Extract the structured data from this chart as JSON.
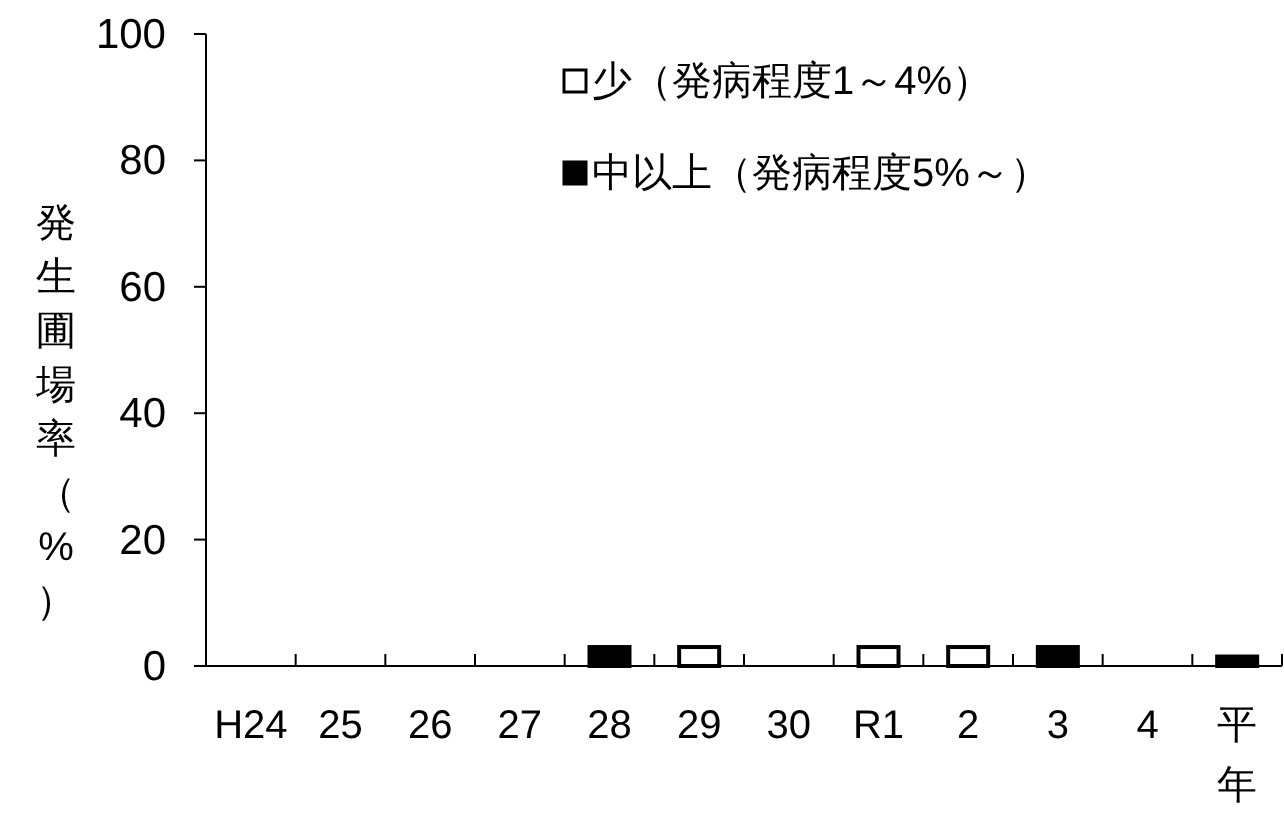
{
  "chart_data": {
    "type": "bar",
    "ylabel": "発生圃場率（%）",
    "categories": [
      "H24",
      "25",
      "26",
      "27",
      "28",
      "29",
      "30",
      "R1",
      "2",
      "3",
      "4",
      "平年"
    ],
    "series": [
      {
        "name": "少（発病程度1～4%）",
        "color": "#ffffff",
        "values": [
          0,
          0,
          0,
          0,
          0,
          3,
          0,
          3,
          3,
          0,
          0,
          0
        ]
      },
      {
        "name": "中以上（発病程度5%～）",
        "color": "#000000",
        "values": [
          0,
          0,
          0,
          0,
          3,
          0,
          0,
          0,
          0,
          3,
          0,
          1.5
        ]
      }
    ],
    "ylim": [
      0,
      100
    ],
    "yticks": [
      0,
      20,
      40,
      60,
      80,
      100
    ],
    "legend": "top right"
  }
}
